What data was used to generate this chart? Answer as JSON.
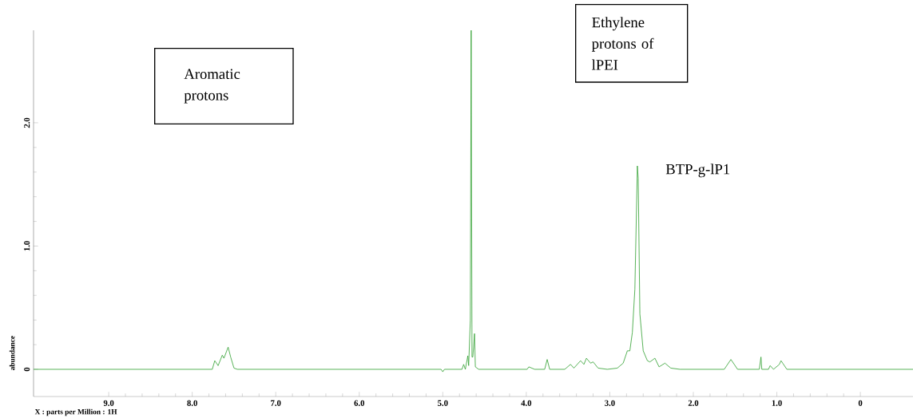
{
  "chart_data": {
    "type": "line",
    "xlabel": "X : parts per Million : 1H",
    "ylabel": "abundance",
    "annotations": [
      "Aromatic protons",
      "Ethylene protons of lPEI",
      "BTP-g-lP1"
    ],
    "x": [
      9.9,
      7.76,
      7.73,
      7.69,
      7.64,
      7.62,
      7.57,
      7.54,
      7.5,
      7.46,
      5.02,
      5.0,
      4.98,
      4.77,
      4.75,
      4.73,
      4.7,
      4.69,
      4.67,
      4.66,
      4.65,
      4.64,
      4.62,
      4.61,
      4.57,
      3.99,
      3.97,
      3.9,
      3.78,
      3.75,
      3.72,
      3.54,
      3.47,
      3.43,
      3.35,
      3.31,
      3.28,
      3.23,
      3.2,
      3.14,
      3.03,
      2.91,
      2.84,
      2.79,
      2.76,
      2.73,
      2.7,
      2.67,
      2.66,
      2.64,
      2.6,
      2.55,
      2.52,
      2.46,
      2.41,
      2.34,
      2.27,
      2.16,
      1.63,
      1.55,
      1.47,
      1.21,
      1.19,
      1.18,
      1.1,
      1.08,
      1.04,
      0.97,
      0.95,
      0.93,
      0.88,
      -0.63
    ],
    "series": [
      {
        "color": "#2ea02e",
        "values": [
          0,
          0,
          0.07,
          0.03,
          0.115,
          0.09,
          0.18,
          0.1,
          0.01,
          0,
          0,
          -0.02,
          0,
          0,
          0.04,
          0,
          0.11,
          0.03,
          0.4,
          2.75,
          0.1,
          0.1,
          0.29,
          0.02,
          0,
          0,
          0.02,
          0,
          0,
          0.08,
          0,
          0,
          0.04,
          0.01,
          0.07,
          0.04,
          0.09,
          0.05,
          0.06,
          0.01,
          0,
          0.01,
          0.05,
          0.15,
          0.15,
          0.3,
          0.65,
          1.65,
          1.55,
          0.45,
          0.15,
          0.07,
          0.06,
          0.09,
          0.02,
          0.05,
          0.01,
          0,
          0,
          0.08,
          0,
          0,
          0.1,
          0,
          0,
          0.03,
          0,
          0.04,
          0.07,
          0.05,
          0,
          0
        ]
      }
    ],
    "xlim": [
      9.9,
      -0.63
    ],
    "ylim": [
      -0.22,
      2.75
    ],
    "xticks": [
      {
        "value": 9,
        "label": "9.0"
      },
      {
        "value": 8,
        "label": "8.0"
      },
      {
        "value": 7,
        "label": "7.0"
      },
      {
        "value": 6,
        "label": "6.0"
      },
      {
        "value": 5,
        "label": "5.0"
      },
      {
        "value": 4,
        "label": "4.0"
      },
      {
        "value": 3,
        "label": "3.0"
      },
      {
        "value": 2,
        "label": "2.0"
      },
      {
        "value": 1,
        "label": "1.0"
      },
      0
    ],
    "yticks": [
      0,
      {
        "value": 1,
        "label": "1.0"
      },
      {
        "value": 2,
        "label": "2.0"
      }
    ],
    "grid": false,
    "marker": "none",
    "line_style": "solid"
  }
}
